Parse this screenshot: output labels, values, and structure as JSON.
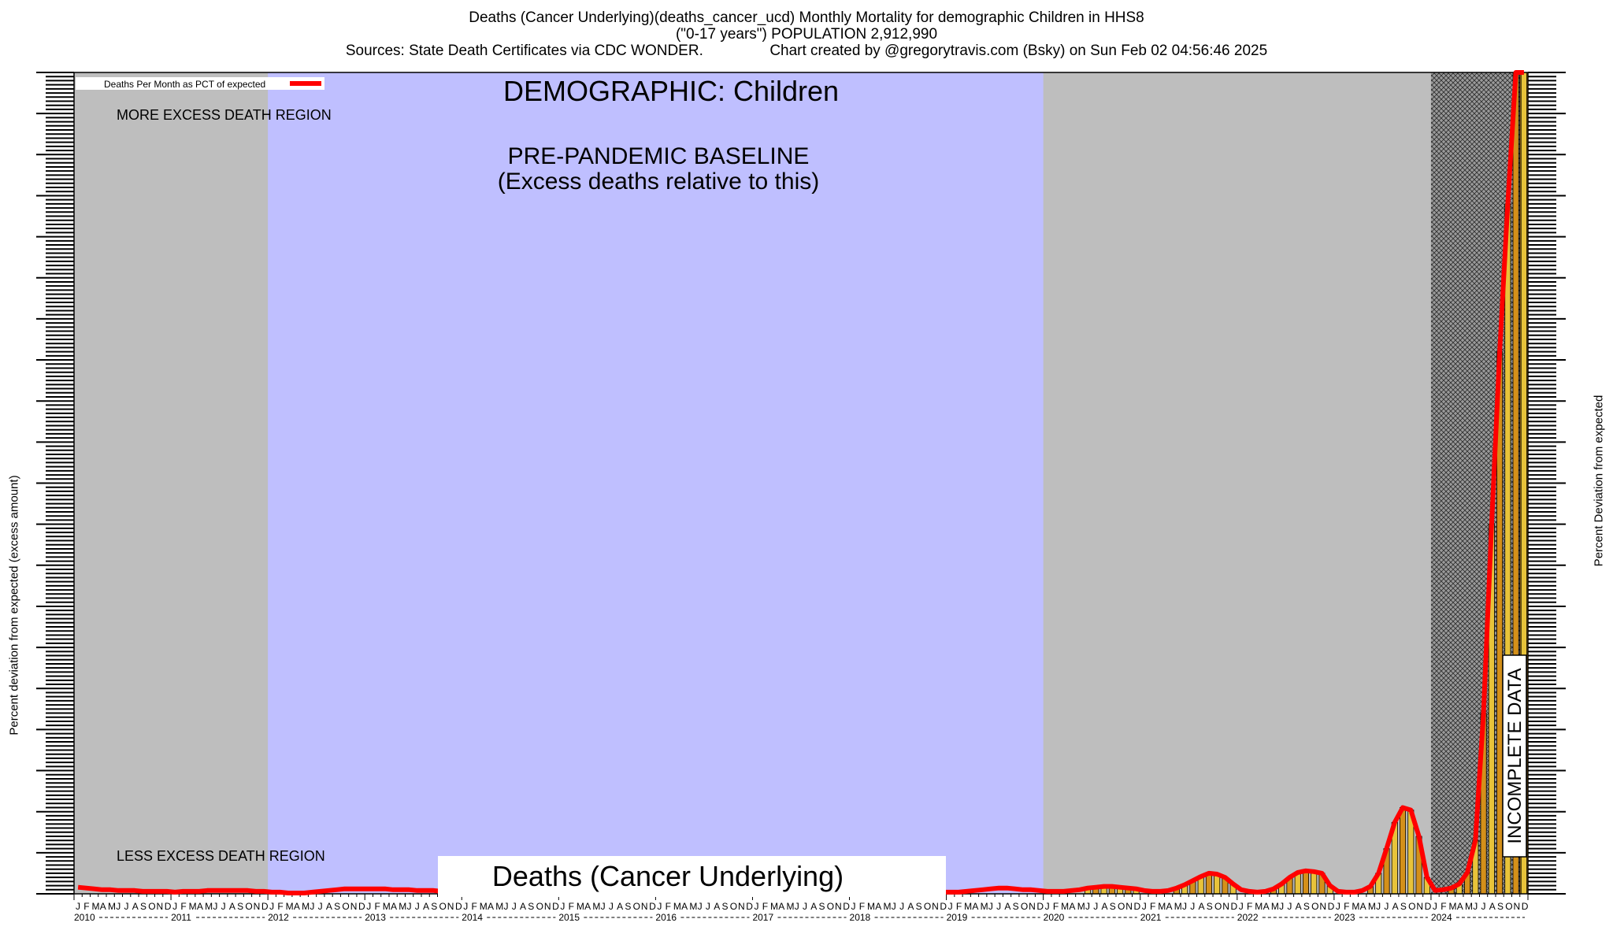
{
  "header": {
    "line1": "Deaths (Cancer Underlying)(deaths_cancer_ucd) Monthly Mortality for demographic Children in HHS8",
    "line2": "(\"0-17 years\") POPULATION 2,912,990",
    "line3": "Sources: State Death Certificates via CDC WONDER.                Chart created by @gregorytravis.com (Bsky) on Sun Feb 02 04:56:46 2025"
  },
  "annotations": {
    "demographic": "DEMOGRAPHIC: Children",
    "baseline_line1": "PRE-PANDEMIC BASELINE",
    "baseline_line2": "(Excess deaths relative to this)",
    "more_excess": "MORE EXCESS DEATH REGION",
    "less_excess": "LESS EXCESS DEATH REGION",
    "incomplete": "INCOMPLETE DATA",
    "bottom_label": "Deaths (Cancer Underlying)"
  },
  "legend": {
    "label": "Deaths Per Month as PCT of expected",
    "color": "#ff0000"
  },
  "colors": {
    "baseline_band": "#bfbfff",
    "grey_band": "#bebebe",
    "bar_fill": "#e8c33a",
    "bar_fill_dark": "#d4901a",
    "line": "#ff0000"
  },
  "chart_data": {
    "type": "line",
    "title": "Deaths (Cancer Underlying)(deaths_cancer_ucd) Monthly Mortality for demographic Children in HHS8",
    "ylabel": "Percent deviation from expected (excess amount)",
    "ylabel_right": "Percent Deviation from expected",
    "x_start": "2010-01",
    "x_end": "2024-12",
    "years": [
      "2010",
      "2011",
      "2012",
      "2013",
      "2014",
      "2015",
      "2016",
      "2017",
      "2018",
      "2019",
      "2020",
      "2021",
      "2022",
      "2023",
      "2024"
    ],
    "month_letters": [
      "J",
      "F",
      "M",
      "A",
      "M",
      "J",
      "J",
      "A",
      "S",
      "O",
      "N",
      "D"
    ],
    "ylim": [
      0,
      100
    ],
    "baseline_period": [
      "2012-01",
      "2019-12"
    ],
    "incomplete_from": "2024-06",
    "series": [
      {
        "name": "Deaths Per Month as PCT of expected",
        "values": [
          0.8,
          0.7,
          0.6,
          0.5,
          0.5,
          0.4,
          0.4,
          0.4,
          0.3,
          0.3,
          0.3,
          0.3,
          0.2,
          0.3,
          0.3,
          0.3,
          0.4,
          0.4,
          0.4,
          0.4,
          0.4,
          0.4,
          0.3,
          0.3,
          0.2,
          0.2,
          0.1,
          0.1,
          0.1,
          0.2,
          0.3,
          0.4,
          0.5,
          0.6,
          0.6,
          0.6,
          0.6,
          0.6,
          0.6,
          0.5,
          0.5,
          0.5,
          0.4,
          0.4,
          0.4,
          0.3,
          0.3,
          0.3,
          0.2,
          0.2,
          0.2,
          0.2,
          0.2,
          0.2,
          0.2,
          0.2,
          0.2,
          0.2,
          0.2,
          0.2,
          0.2,
          0.2,
          0.2,
          0.2,
          0.2,
          0.2,
          0.2,
          0.2,
          0.2,
          0.2,
          0.2,
          0.2,
          0.2,
          0.2,
          0.2,
          0.2,
          0.2,
          0.2,
          0.2,
          0.2,
          0.2,
          0.2,
          0.2,
          0.2,
          0.2,
          0.2,
          0.2,
          0.2,
          0.2,
          0.2,
          0.2,
          0.2,
          0.2,
          0.2,
          0.2,
          0.2,
          0.2,
          0.2,
          0.2,
          0.2,
          0.2,
          0.2,
          0.2,
          0.2,
          0.2,
          0.2,
          0.2,
          0.2,
          0.2,
          0.2,
          0.3,
          0.4,
          0.5,
          0.6,
          0.7,
          0.7,
          0.6,
          0.5,
          0.5,
          0.4,
          0.3,
          0.3,
          0.3,
          0.4,
          0.5,
          0.7,
          0.8,
          0.9,
          0.9,
          0.8,
          0.7,
          0.6,
          0.4,
          0.3,
          0.3,
          0.4,
          0.7,
          1.1,
          1.6,
          2.1,
          2.5,
          2.4,
          2.0,
          1.2,
          0.5,
          0.3,
          0.2,
          0.3,
          0.6,
          1.2,
          2.0,
          2.6,
          2.8,
          2.7,
          2.5,
          1.0,
          0.3,
          0.2,
          0.2,
          0.4,
          0.9,
          2.5,
          5.5,
          8.7,
          10.5,
          10.2,
          7.0,
          2.0,
          0.4,
          0.5,
          0.7,
          1.2,
          2.6,
          6.5,
          22.0,
          45.0,
          66.0,
          84.0,
          100.0,
          100.0
        ]
      }
    ]
  }
}
